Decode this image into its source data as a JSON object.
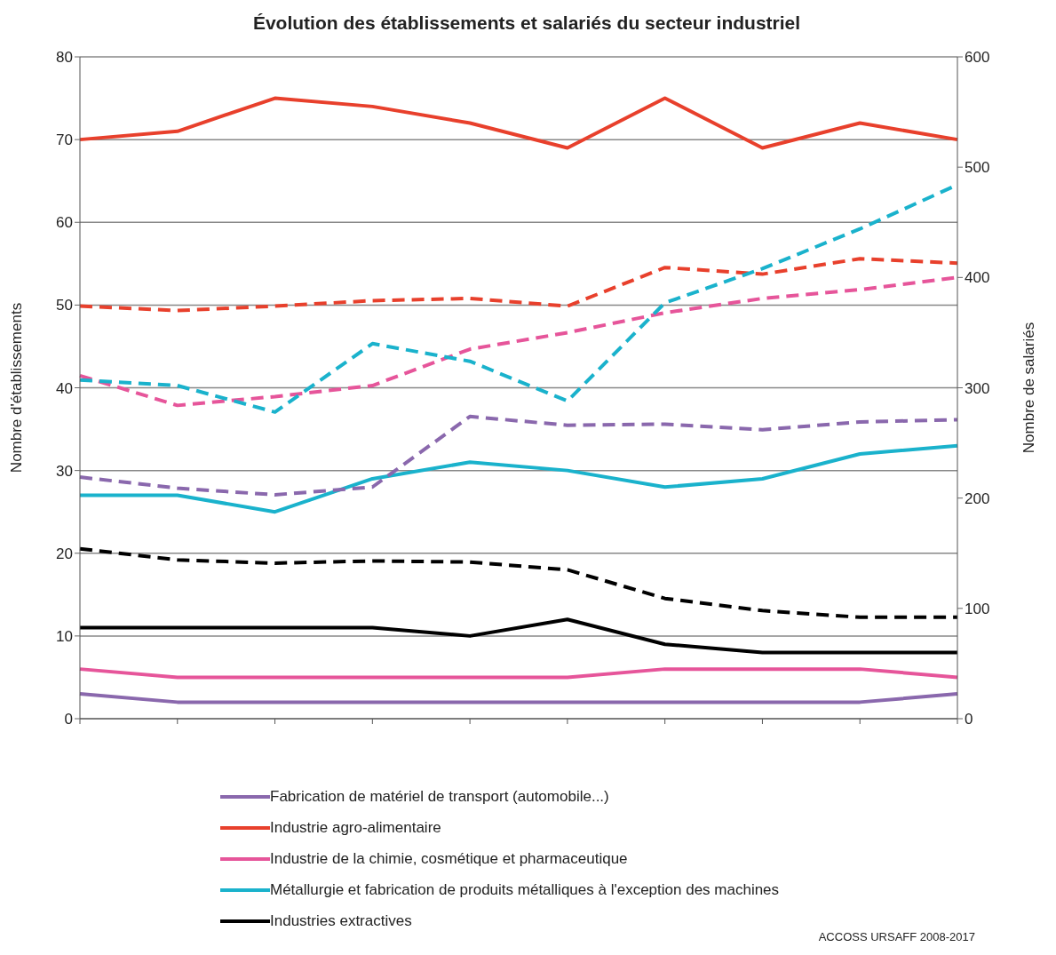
{
  "chart_data": {
    "type": "line",
    "title": "Évolution des établissements et salariés du secteur industriel",
    "ylabel": "Nombre d'établissements",
    "y2label": "Nombre de salariés",
    "categories": [
      null,
      null,
      null,
      null,
      null,
      null,
      null,
      null,
      null,
      null
    ],
    "series": [
      {
        "name": "Fabrication de matériel de transport (automobile...)",
        "color": "#8a68ad",
        "values": [
          3,
          2,
          2,
          2,
          2,
          2,
          2,
          2,
          2,
          3
        ]
      },
      {
        "name": "Industrie agro-alimentaire",
        "color": "#e8402c",
        "values": [
          70,
          71,
          75,
          74,
          72,
          69,
          75,
          69,
          72,
          70
        ]
      },
      {
        "name": "Industrie de la chimie, cosmétique et pharmaceutique",
        "color": "#e6559a",
        "values": [
          6,
          5,
          5,
          5,
          5,
          5,
          6,
          6,
          6,
          5
        ]
      },
      {
        "name": "Métallurgie et fabrication de produits métalliques à l'exception des machines",
        "color": "#1ab2cc",
        "values": [
          27,
          27,
          25,
          29,
          31,
          30,
          28,
          29,
          32,
          33
        ]
      },
      {
        "name": "Industries extractives",
        "color": "#000000",
        "values": [
          11,
          11,
          11,
          11,
          10,
          12,
          9,
          8,
          8,
          8
        ]
      },
      {
        "color": "#8a68ad",
        "axis": "y2",
        "line_style": "dashed",
        "values": [
          219,
          209,
          203,
          210,
          274,
          266,
          267,
          262,
          269,
          271
        ]
      },
      {
        "color": "#e8402c",
        "axis": "y2",
        "line_style": "dashed",
        "values": [
          374,
          370,
          374,
          379,
          381,
          374,
          409,
          403,
          417,
          413
        ]
      },
      {
        "color": "#e6559a",
        "axis": "y2",
        "line_style": "dashed",
        "values": [
          311,
          284,
          292,
          302,
          335,
          350,
          368,
          381,
          389,
          400
        ]
      },
      {
        "color": "#1ab2cc",
        "axis": "y2",
        "line_style": "dashed",
        "values": [
          307,
          302,
          278,
          340,
          324,
          288,
          377,
          408,
          444,
          484
        ]
      },
      {
        "color": "#000000",
        "axis": "y2",
        "line_style": "dashed",
        "values": [
          154,
          144,
          141,
          143,
          142,
          135,
          109,
          98,
          92,
          92
        ]
      }
    ],
    "ylim": [
      0,
      80
    ],
    "yticks": [
      0,
      10,
      20,
      30,
      40,
      50,
      60,
      70,
      80
    ],
    "y2lim": [
      0,
      600
    ],
    "y2ticks": [
      0,
      100,
      200,
      300,
      400,
      500,
      600
    ],
    "grid": "y",
    "legend": "bottom",
    "line_style": "solid",
    "marker": "none",
    "annotations": [
      "ACCOSS URSAFF 2008-2017"
    ]
  }
}
